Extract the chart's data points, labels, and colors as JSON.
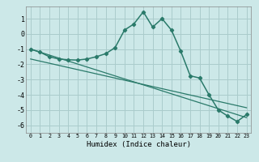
{
  "title": "",
  "xlabel": "Humidex (Indice chaleur)",
  "bg_color": "#cce8e8",
  "grid_color": "#aacccc",
  "line_color": "#2a7a6a",
  "xlim": [
    -0.5,
    23.5
  ],
  "ylim": [
    -6.5,
    1.8
  ],
  "yticks": [
    -6,
    -5,
    -4,
    -3,
    -2,
    -1,
    0,
    1
  ],
  "xticks": [
    0,
    1,
    2,
    3,
    4,
    5,
    6,
    7,
    8,
    9,
    10,
    11,
    12,
    13,
    14,
    15,
    16,
    17,
    18,
    19,
    20,
    21,
    22,
    23
  ],
  "line1_x": [
    0,
    1,
    2,
    3,
    4,
    5,
    6,
    7,
    8,
    9,
    10,
    11,
    12,
    13,
    14,
    15,
    16,
    17,
    18,
    19,
    20,
    21,
    22,
    23
  ],
  "line1_y": [
    -1.0,
    -1.2,
    -1.5,
    -1.65,
    -1.7,
    -1.72,
    -1.65,
    -1.5,
    -1.3,
    -0.9,
    0.25,
    0.65,
    1.45,
    0.45,
    1.0,
    0.25,
    -1.15,
    -2.75,
    -2.9,
    -4.0,
    -5.0,
    -5.4,
    -5.75,
    -5.3
  ],
  "line2_x": [
    0,
    23
  ],
  "line2_y": [
    -1.0,
    -5.5
  ],
  "line3_x": [
    0,
    23
  ],
  "line3_y": [
    -1.65,
    -4.85
  ]
}
